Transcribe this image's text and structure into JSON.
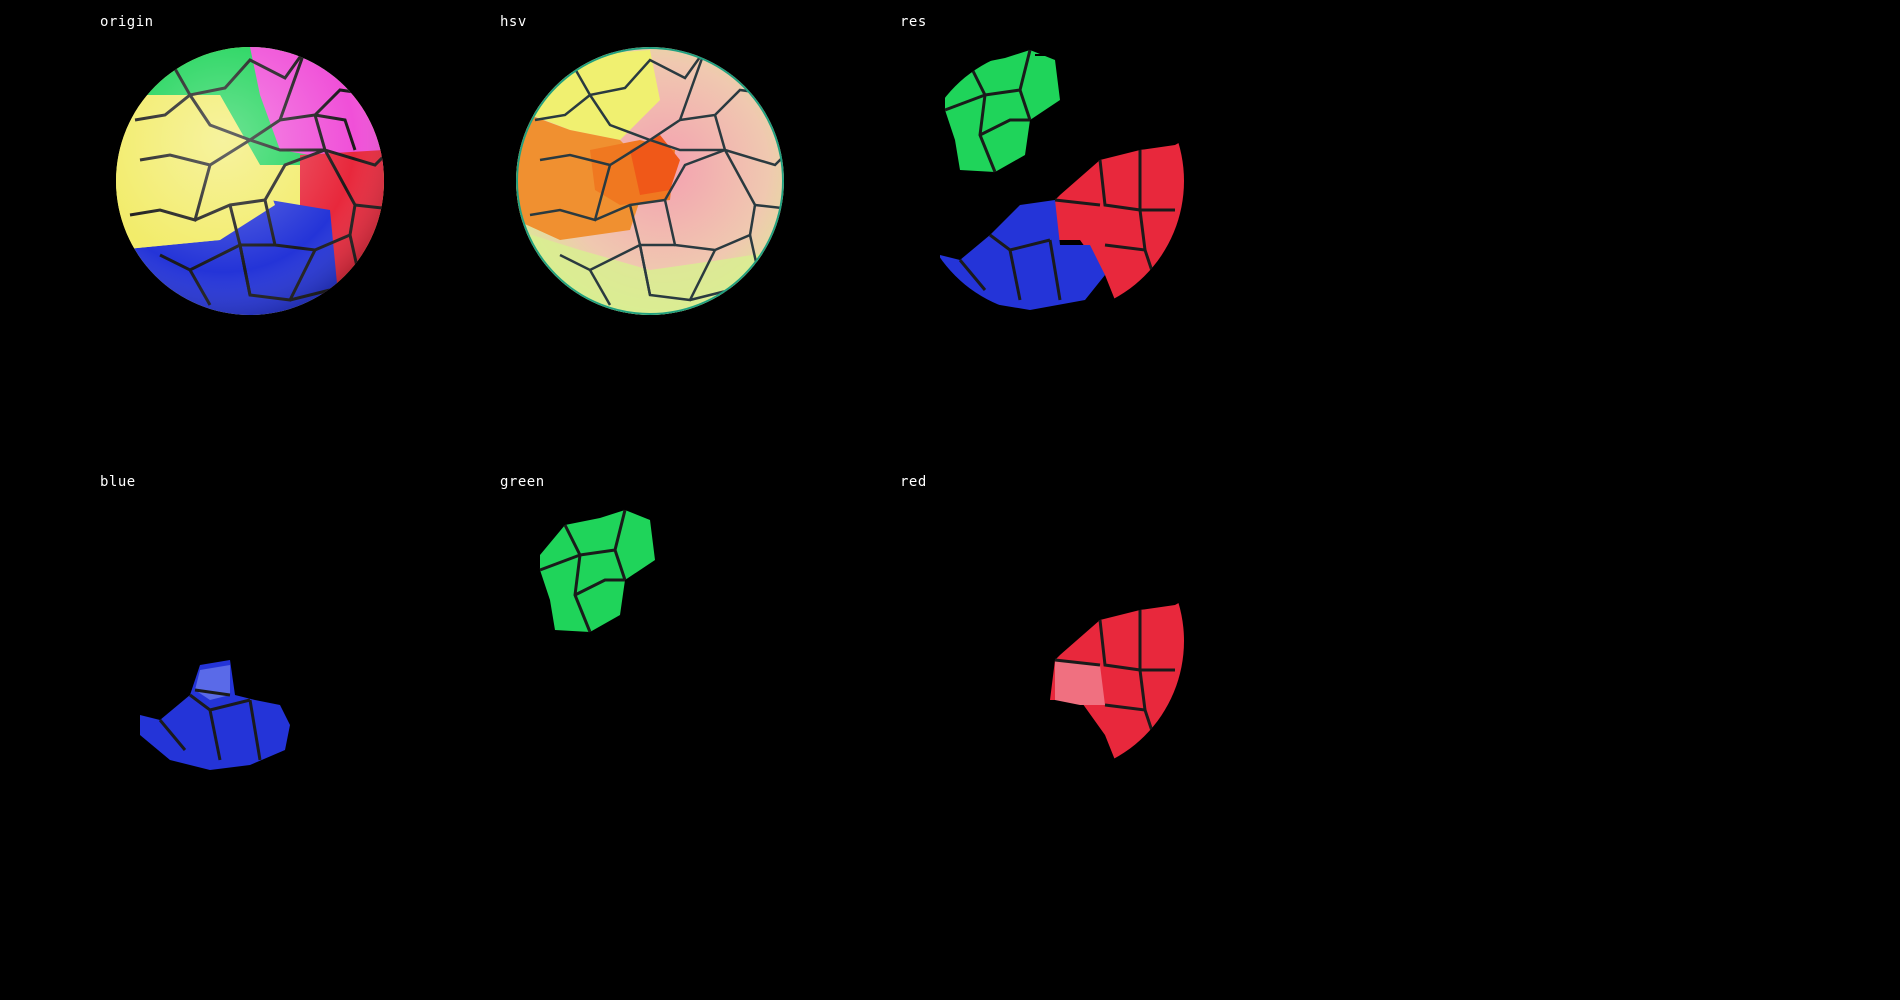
{
  "panels": {
    "origin": {
      "title": "origin"
    },
    "hsv": {
      "title": "hsv"
    },
    "res": {
      "title": "res"
    },
    "blue": {
      "title": "blue"
    },
    "green": {
      "title": "green"
    },
    "red": {
      "title": "red"
    }
  },
  "colors": {
    "background": "#000000",
    "text": "#ffffff",
    "green": "#1fd45a",
    "yellow": "#f2ec6a",
    "magenta": "#f050d8",
    "red": "#e8283c",
    "blue": "#2434d8",
    "orange": "#f07820",
    "pink": "#f4a0b0",
    "cell_border": "#1a1a1a"
  }
}
